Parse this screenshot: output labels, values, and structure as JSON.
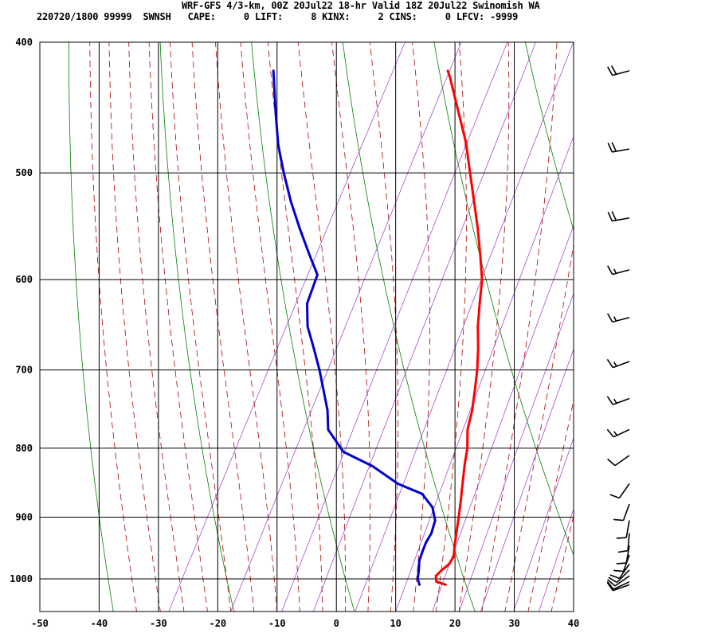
{
  "header": {
    "title": "WRF-GFS 4/3-km, 00Z 20Jul22 18-hr Valid 18Z 20Jul22 Swinomish WA",
    "stats": "220720/1800 99999  SWNSH   CAPE:     0 LIFT:     8 KINX:     2 CINS:     0 LFCV: -9999"
  },
  "chart_data": {
    "type": "line",
    "title": "",
    "xlabel": "",
    "ylabel": "",
    "x_ticks": [
      -50,
      -40,
      -30,
      -20,
      -10,
      0,
      10,
      20,
      30,
      40
    ],
    "y_ticks": [
      400,
      500,
      600,
      700,
      800,
      900,
      1000
    ],
    "xlim": [
      -50,
      40
    ],
    "ylim": [
      1050,
      400
    ],
    "y_scale": "log",
    "skew": "skewed temperature axis",
    "grid": true,
    "colors": {
      "temperature": "#ff0000",
      "dewpoint": "#0000cc",
      "dry_adiabat": "#008000",
      "moist_adiabat": "#b00000",
      "mixing_ratio": "#9a32cd",
      "grid": "#000000"
    },
    "series": [
      {
        "key": "temperature",
        "points": [
          {
            "p": 1010,
            "t": 17.4
          },
          {
            "p": 1005,
            "t": 15.6
          },
          {
            "p": 995,
            "t": 15.0
          },
          {
            "p": 985,
            "t": 15.5
          },
          {
            "p": 975,
            "t": 16.2
          },
          {
            "p": 962,
            "t": 16.3
          },
          {
            "p": 945,
            "t": 15.5
          },
          {
            "p": 925,
            "t": 14.7
          },
          {
            "p": 900,
            "t": 13.7
          },
          {
            "p": 875,
            "t": 12.6
          },
          {
            "p": 850,
            "t": 11.4
          },
          {
            "p": 825,
            "t": 10.2
          },
          {
            "p": 800,
            "t": 9.1
          },
          {
            "p": 775,
            "t": 7.5
          },
          {
            "p": 750,
            "t": 6.6
          },
          {
            "p": 725,
            "t": 5.3
          },
          {
            "p": 700,
            "t": 3.9
          },
          {
            "p": 675,
            "t": 2.2
          },
          {
            "p": 650,
            "t": 0.2
          },
          {
            "p": 625,
            "t": -1.5
          },
          {
            "p": 600,
            "t": -3.2
          },
          {
            "p": 575,
            "t": -5.7
          },
          {
            "p": 550,
            "t": -8.4
          },
          {
            "p": 525,
            "t": -11.4
          },
          {
            "p": 500,
            "t": -14.6
          },
          {
            "p": 475,
            "t": -17.9
          },
          {
            "p": 450,
            "t": -22.0
          },
          {
            "p": 425,
            "t": -26.3
          },
          {
            "p": 420,
            "t": -27.3
          }
        ]
      },
      {
        "key": "dewpoint",
        "points": [
          {
            "p": 1010,
            "t": 13.0
          },
          {
            "p": 1000,
            "t": 12.2
          },
          {
            "p": 985,
            "t": 11.6
          },
          {
            "p": 970,
            "t": 10.9
          },
          {
            "p": 955,
            "t": 10.6
          },
          {
            "p": 940,
            "t": 10.4
          },
          {
            "p": 925,
            "t": 10.5
          },
          {
            "p": 905,
            "t": 10.0
          },
          {
            "p": 885,
            "t": 8.4
          },
          {
            "p": 865,
            "t": 5.5
          },
          {
            "p": 850,
            "t": 0.5
          },
          {
            "p": 825,
            "t": -5.3
          },
          {
            "p": 805,
            "t": -11.5
          },
          {
            "p": 775,
            "t": -16.0
          },
          {
            "p": 750,
            "t": -17.8
          },
          {
            "p": 725,
            "t": -20.2
          },
          {
            "p": 700,
            "t": -22.7
          },
          {
            "p": 675,
            "t": -25.5
          },
          {
            "p": 650,
            "t": -28.5
          },
          {
            "p": 625,
            "t": -30.6
          },
          {
            "p": 595,
            "t": -31.4
          },
          {
            "p": 575,
            "t": -34.5
          },
          {
            "p": 550,
            "t": -38.4
          },
          {
            "p": 525,
            "t": -42.3
          },
          {
            "p": 500,
            "t": -46.0
          },
          {
            "p": 480,
            "t": -48.9
          },
          {
            "p": 475,
            "t": -49.6
          },
          {
            "p": 450,
            "t": -52.8
          },
          {
            "p": 420,
            "t": -56.7
          }
        ]
      }
    ],
    "wind_barbs": [
      {
        "p": 420,
        "dir": 255,
        "spd": 20
      },
      {
        "p": 480,
        "dir": 260,
        "spd": 20
      },
      {
        "p": 540,
        "dir": 260,
        "spd": 20
      },
      {
        "p": 590,
        "dir": 255,
        "spd": 15
      },
      {
        "p": 640,
        "dir": 255,
        "spd": 15
      },
      {
        "p": 690,
        "dir": 250,
        "spd": 15
      },
      {
        "p": 735,
        "dir": 250,
        "spd": 15
      },
      {
        "p": 775,
        "dir": 245,
        "spd": 15
      },
      {
        "p": 810,
        "dir": 235,
        "spd": 10
      },
      {
        "p": 850,
        "dir": 215,
        "spd": 10
      },
      {
        "p": 880,
        "dir": 200,
        "spd": 10
      },
      {
        "p": 905,
        "dir": 190,
        "spd": 10
      },
      {
        "p": 925,
        "dir": 185,
        "spd": 10
      },
      {
        "p": 945,
        "dir": 190,
        "spd": 10
      },
      {
        "p": 960,
        "dir": 200,
        "spd": 10
      },
      {
        "p": 975,
        "dir": 215,
        "spd": 10
      },
      {
        "p": 985,
        "dir": 225,
        "spd": 10
      },
      {
        "p": 995,
        "dir": 235,
        "spd": 10
      },
      {
        "p": 1005,
        "dir": 245,
        "spd": 10
      },
      {
        "p": 1010,
        "dir": 250,
        "spd": 10
      }
    ]
  }
}
